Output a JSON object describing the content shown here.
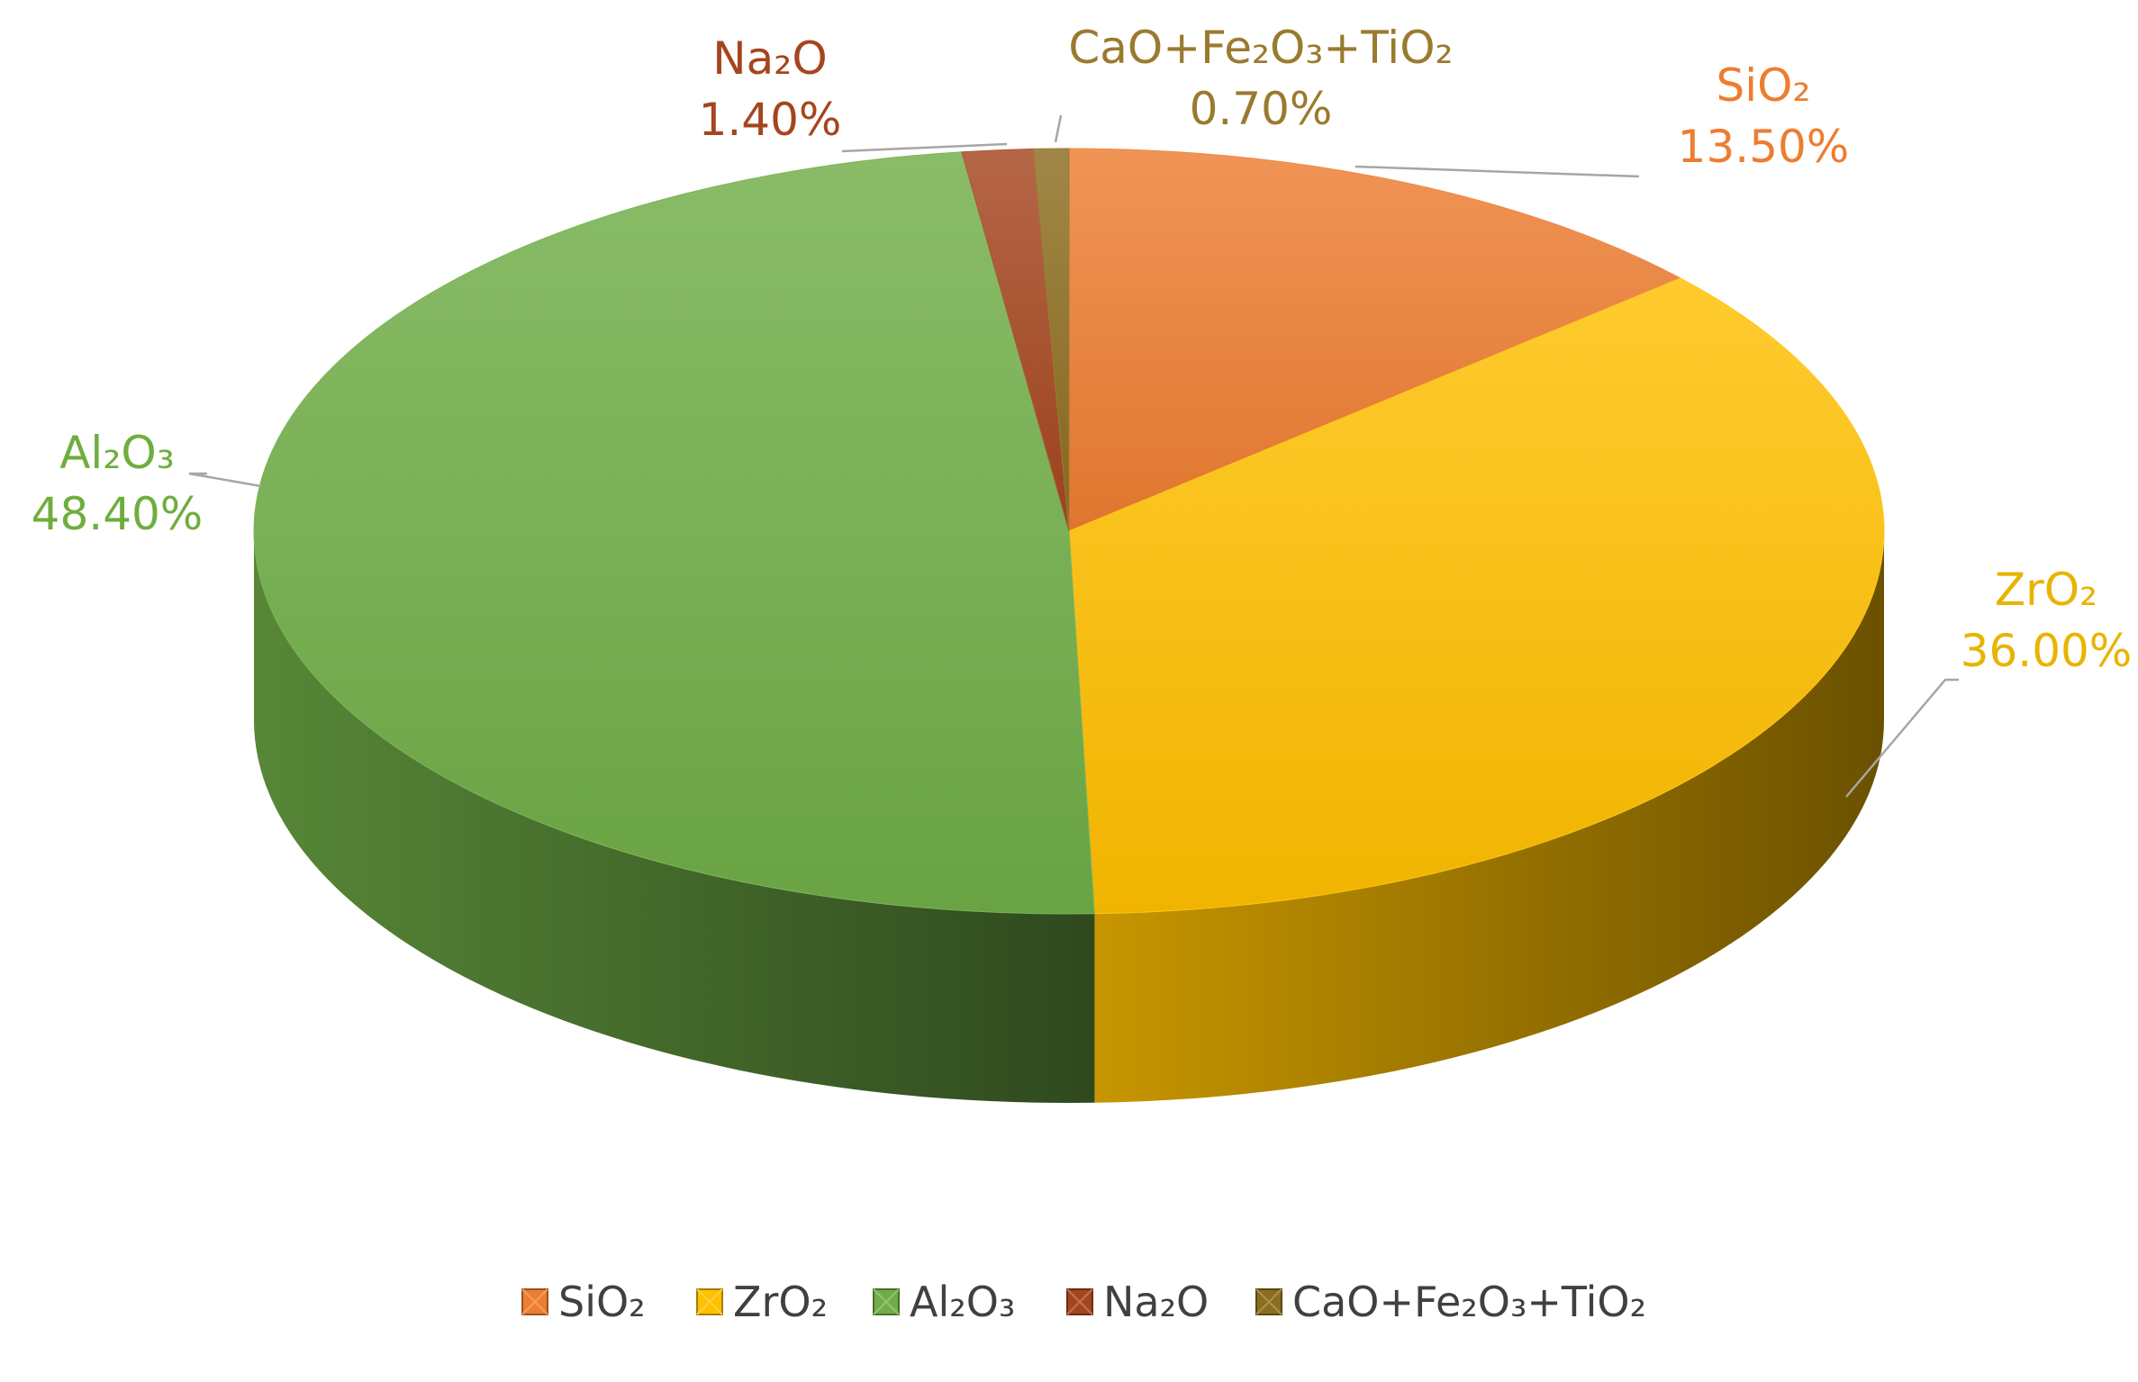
{
  "chart_data": {
    "type": "pie",
    "categories": [
      "SiO₂",
      "ZrO₂",
      "Al₂O₃",
      "Na₂O",
      "CaO+Fe₂O₃+TiO₂"
    ],
    "values": [
      13.5,
      36.0,
      48.4,
      1.4,
      0.7
    ],
    "value_labels": [
      "13.50%",
      "36.00%",
      "48.40%",
      "1.40%",
      "0.70%"
    ],
    "colors": [
      "#ED7D31",
      "#FFC000",
      "#70AD47",
      "#A5451E",
      "#8C6D1F"
    ],
    "label_colors": [
      "#ED7D31",
      "#E8B400",
      "#6FAE3E",
      "#A5451E",
      "#9A7A2E"
    ],
    "style": "3d-pie",
    "legend": "bottom"
  }
}
